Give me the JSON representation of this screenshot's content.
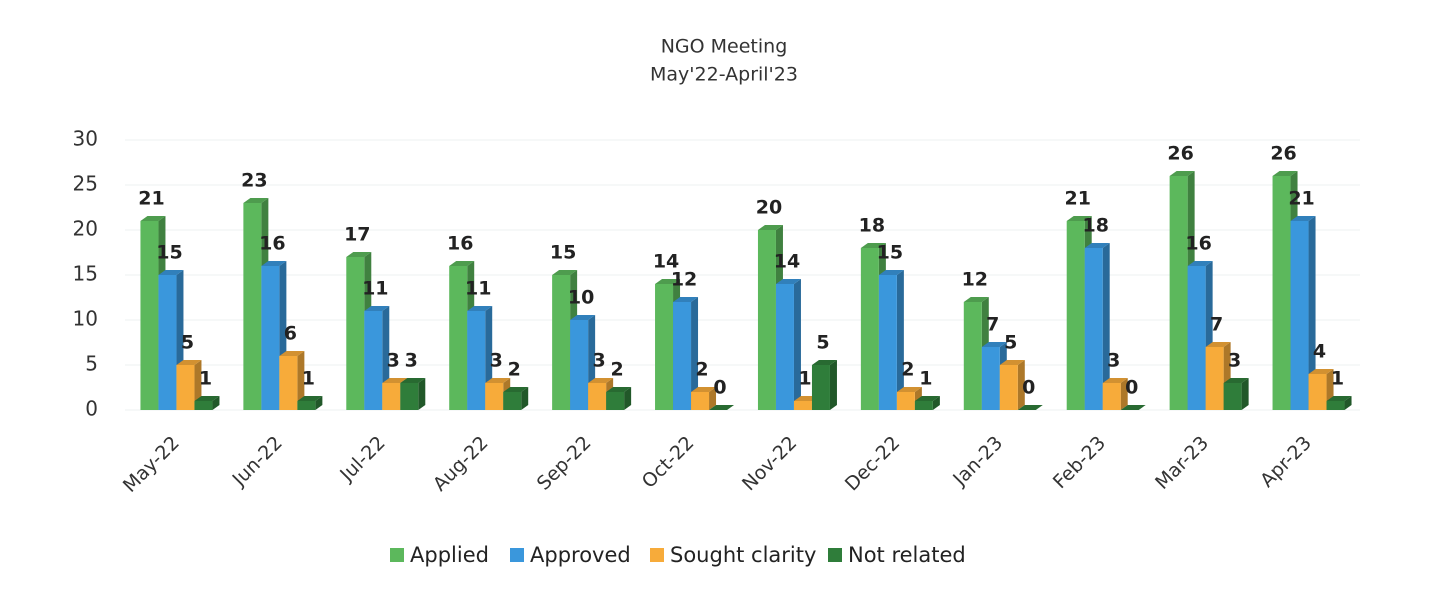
{
  "chart_data": {
    "type": "bar",
    "title": "NGO Meeting",
    "subtitle": "May'22-April'23",
    "categories": [
      "May-22",
      "Jun-22",
      "Jul-22",
      "Aug-22",
      "Sep-22",
      "Oct-22",
      "Nov-22",
      "Dec-22",
      "Jan-23",
      "Feb-23",
      "Mar-23",
      "Apr-23"
    ],
    "series": [
      {
        "name": "Applied",
        "color": "#5cb85c",
        "values": [
          21,
          23,
          17,
          16,
          15,
          14,
          20,
          18,
          12,
          21,
          26,
          26
        ]
      },
      {
        "name": "Approved",
        "color": "#3a97dc",
        "values": [
          15,
          16,
          11,
          11,
          10,
          12,
          14,
          15,
          7,
          18,
          16,
          21
        ]
      },
      {
        "name": "Sought clarity",
        "color": "#f7ab3a",
        "values": [
          5,
          6,
          3,
          3,
          3,
          2,
          1,
          2,
          5,
          3,
          7,
          4
        ]
      },
      {
        "name": "Not related",
        "color": "#2f7d3a",
        "values": [
          1,
          1,
          3,
          2,
          2,
          0,
          5,
          1,
          0,
          0,
          3,
          1
        ]
      }
    ],
    "ylim": [
      0,
      30
    ],
    "yticks": [
      0,
      5,
      10,
      15,
      20,
      25,
      30
    ],
    "grid": true,
    "legend": "bottom"
  }
}
